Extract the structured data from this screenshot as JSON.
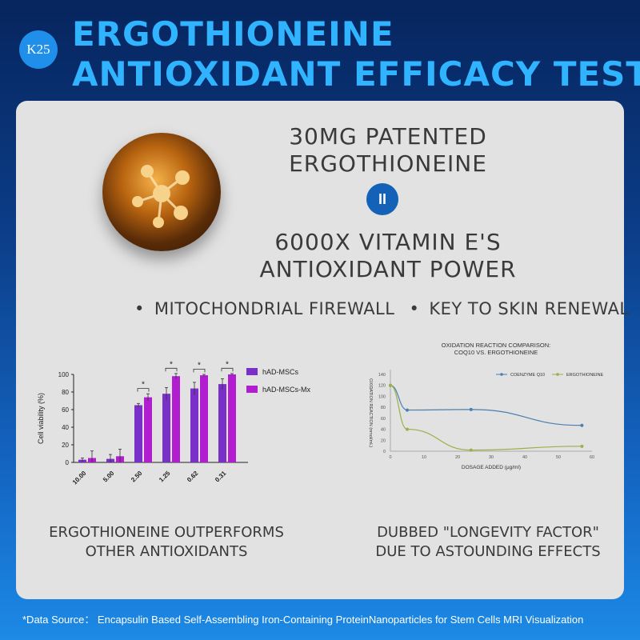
{
  "badge": "K25",
  "title": {
    "line1": "ERGOTHIONEINE",
    "line2": "ANTIOXIDANT EFFICACY TEST"
  },
  "headline_top": {
    "line1": "30MG PATENTED",
    "line2": "ERGOTHIONEINE"
  },
  "equals_symbol": "II",
  "headline_bottom": {
    "line1": "6000X VITAMIN E'S",
    "line2": "ANTIOXIDANT POWER"
  },
  "bullets": [
    "MITOCHONDRIAL FIREWALL",
    "KEY TO SKIN RENEWAL"
  ],
  "bullet_symbol": "•",
  "captions": {
    "left": {
      "line1": "ERGOTHIONEINE OUTPERFORMS",
      "line2": "OTHER ANTIOXIDANTS"
    },
    "right": {
      "line1": "DUBBED \"LONGEVITY FACTOR\"",
      "line2": "DUE TO ASTOUNDING EFFECTS"
    }
  },
  "footer": "*Data Source： Encapsulin Based Self-Assembling Iron-Containing ProteinNanoparticles for Stem Cells MRI Visualization",
  "chart_data": [
    {
      "type": "bar",
      "ylabel": "Cell viability (%)",
      "xlabel": "",
      "ylim": [
        0,
        100
      ],
      "yticks": [
        0,
        20,
        40,
        60,
        80,
        100
      ],
      "categories": [
        "10.00",
        "5.00",
        "2.50",
        "1.25",
        "0.62",
        "0.31"
      ],
      "series": [
        {
          "name": "hAD-MSCs",
          "values": [
            3,
            4,
            65,
            78,
            84,
            89
          ],
          "errors": [
            2,
            5,
            2,
            7,
            7,
            6
          ],
          "color": "#7a2fc8"
        },
        {
          "name": "hAD-MSCs-Mx",
          "values": [
            5,
            7,
            74,
            98,
            99,
            100
          ],
          "errors": [
            8,
            8,
            4,
            3,
            1,
            1
          ],
          "color": "#b01ed0"
        }
      ],
      "significance_marks": [
        "*",
        "*",
        "*",
        "*"
      ],
      "legend": "top-right"
    },
    {
      "type": "line",
      "title": "OXIDATION REACTION COMPARISON:",
      "subtitle": "COQ10 VS. ERGOTHIONEINE",
      "xlabel": "DOSAGE ADDED  (μg/ml)",
      "ylabel": "OXIDATION REACTION  (nmol/mL)",
      "xlim": [
        0,
        60
      ],
      "ylim": [
        0,
        140
      ],
      "xticks": [
        0,
        10,
        20,
        30,
        40,
        50,
        60
      ],
      "yticks": [
        0,
        20,
        40,
        60,
        80,
        100,
        120,
        140
      ],
      "series": [
        {
          "name": "COENZYME Q10",
          "x": [
            0,
            5,
            24,
            57
          ],
          "y": [
            120,
            75,
            76,
            47
          ],
          "color": "#4a7fb0"
        },
        {
          "name": "ERGOTHIONEINE",
          "x": [
            0,
            5,
            24,
            57
          ],
          "y": [
            120,
            40,
            2,
            9
          ],
          "color": "#9ab04a"
        }
      ],
      "legend": "top-right"
    }
  ]
}
